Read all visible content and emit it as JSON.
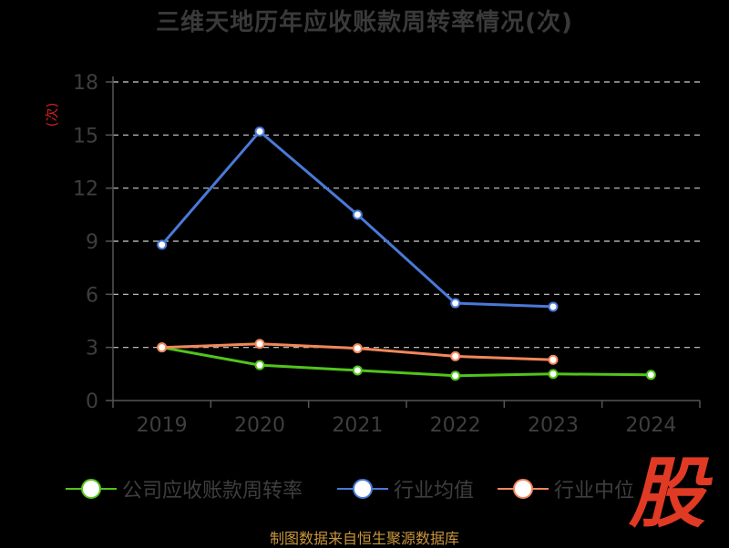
{
  "title": "三维天地历年应收账款周转率情况(次)",
  "source_note": "制图数据来自恒生聚源数据库",
  "brand_logo": "股",
  "colors": {
    "background": "#000000",
    "grid": "#cfcfcf",
    "axis": "#555555",
    "tick_text": "#3e3e3e",
    "unit_label": "#cc2020"
  },
  "chart_data": {
    "type": "line",
    "title": "三维天地历年应收账款周转率情况(次)",
    "ylabel": "(次)",
    "xlabel": "",
    "categories": [
      "2019",
      "2020",
      "2021",
      "2022",
      "2023",
      "2024"
    ],
    "ylim": [
      0,
      18
    ],
    "yticks": [
      0,
      3,
      6,
      9,
      12,
      15,
      18
    ],
    "grid": true,
    "legend_position": "bottom",
    "series": [
      {
        "name": "公司应收账款周转率",
        "color": "#52c41a",
        "values": [
          3.0,
          2.0,
          1.7,
          1.4,
          1.5,
          1.45
        ]
      },
      {
        "name": "行业均值",
        "color": "#4a7ad8",
        "values": [
          8.8,
          15.2,
          10.5,
          5.5,
          5.3,
          null
        ]
      },
      {
        "name": "行业中位",
        "color": "#f2875a",
        "values": [
          3.0,
          3.2,
          2.95,
          2.5,
          2.3,
          null
        ]
      }
    ]
  }
}
